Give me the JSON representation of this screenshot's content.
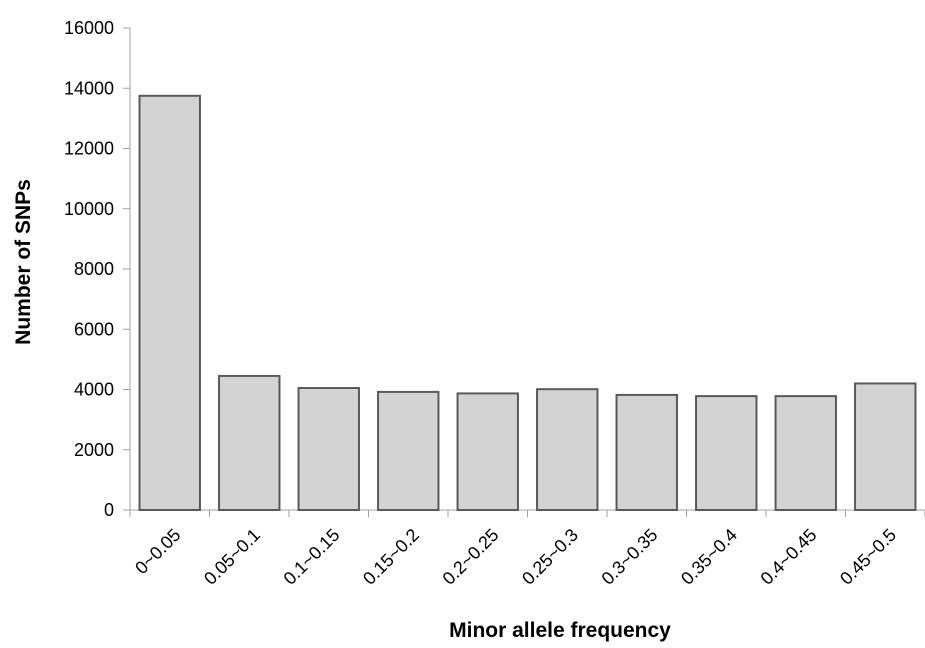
{
  "chart_data": {
    "type": "bar",
    "categories": [
      "0~0.05",
      "0.05~0.1",
      "0.1~0.15",
      "0.15~0.2",
      "0.2~0.25",
      "0.25~0.3",
      "0.3~0.35",
      "0.35~0.4",
      "0.4~0.45",
      "0.45~0.5"
    ],
    "values": [
      13750,
      4450,
      4050,
      3920,
      3870,
      4010,
      3820,
      3780,
      3780,
      4200
    ],
    "xlabel": "Minor allele frequency",
    "ylabel": "Number of SNPs",
    "ylim": [
      0,
      16000
    ],
    "yticks": [
      0,
      2000,
      4000,
      6000,
      8000,
      10000,
      12000,
      14000,
      16000
    ],
    "grid": false,
    "legend": "none",
    "bar_fill": "#d3d3d3",
    "bar_edge": "#5a5a5a"
  }
}
